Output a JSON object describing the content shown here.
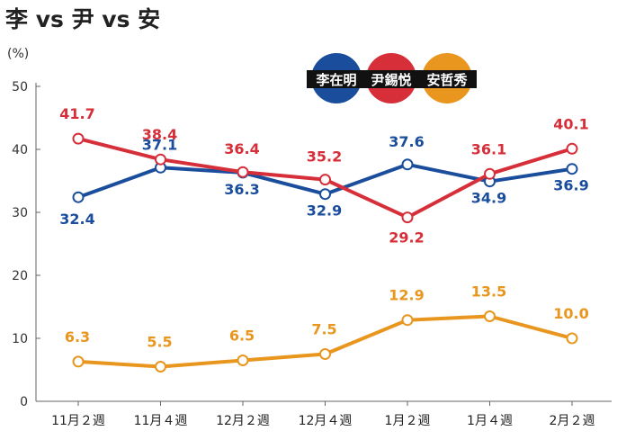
{
  "chart_data": {
    "type": "line",
    "title": "李 vs 尹 vs 安",
    "unit_label": "(%)",
    "categories": [
      "11月２週",
      "11月４週",
      "12月２週",
      "12月４週",
      "1月２週",
      "1月４週",
      "2月２週"
    ],
    "ylim": [
      0,
      50
    ],
    "yticks": [
      0,
      10,
      20,
      30,
      40,
      50
    ],
    "grid": false,
    "legend_position": "top-right",
    "series": [
      {
        "name": "李在明",
        "color": "#1a4e9c",
        "values": [
          32.4,
          37.1,
          36.3,
          32.9,
          37.6,
          34.9,
          36.9
        ],
        "labels": [
          "32.4",
          "37.1",
          "36.3",
          "32.9",
          "37.6",
          "34.9",
          "36.9"
        ]
      },
      {
        "name": "尹錫悦",
        "color": "#d62f3a",
        "values": [
          41.7,
          38.4,
          36.4,
          35.2,
          29.2,
          36.1,
          40.1
        ],
        "labels": [
          "41.7",
          "38.4",
          "36.4",
          "35.2",
          "29.2",
          "36.1",
          "40.1"
        ]
      },
      {
        "name": "安哲秀",
        "color": "#e8961e",
        "values": [
          6.3,
          5.5,
          6.5,
          7.5,
          12.9,
          13.5,
          10.0
        ],
        "labels": [
          "6.3",
          "5.5",
          "6.5",
          "7.5",
          "12.9",
          "13.5",
          "10.0"
        ]
      }
    ]
  }
}
